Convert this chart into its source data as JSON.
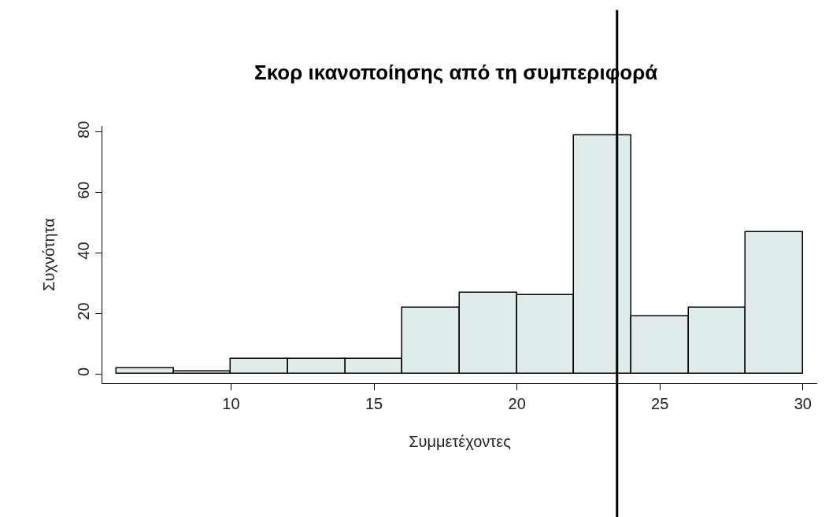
{
  "chart_data": {
    "type": "histogram",
    "title": "Σκορ ικανοποίησης από τη συμπεριφορά",
    "xlabel": "Συμμετέχοντες",
    "ylabel": "Συχνότητα",
    "bins": [
      6,
      8,
      10,
      12,
      14,
      16,
      18,
      20,
      22,
      24,
      26,
      28,
      30
    ],
    "values": [
      2,
      1,
      5,
      5,
      5,
      22,
      27,
      26,
      79,
      19,
      22,
      47
    ],
    "color": "#e0ecec",
    "xlim": [
      5.5,
      30.5
    ],
    "xticks": [
      10,
      15,
      20,
      25,
      30
    ],
    "ylim": [
      -3,
      82
    ],
    "yticks": [
      0,
      20,
      40,
      60,
      80
    ],
    "ref_lines": [
      {
        "axis": "x",
        "value": 23.5,
        "color": "#000000"
      }
    ],
    "legend": false
  }
}
